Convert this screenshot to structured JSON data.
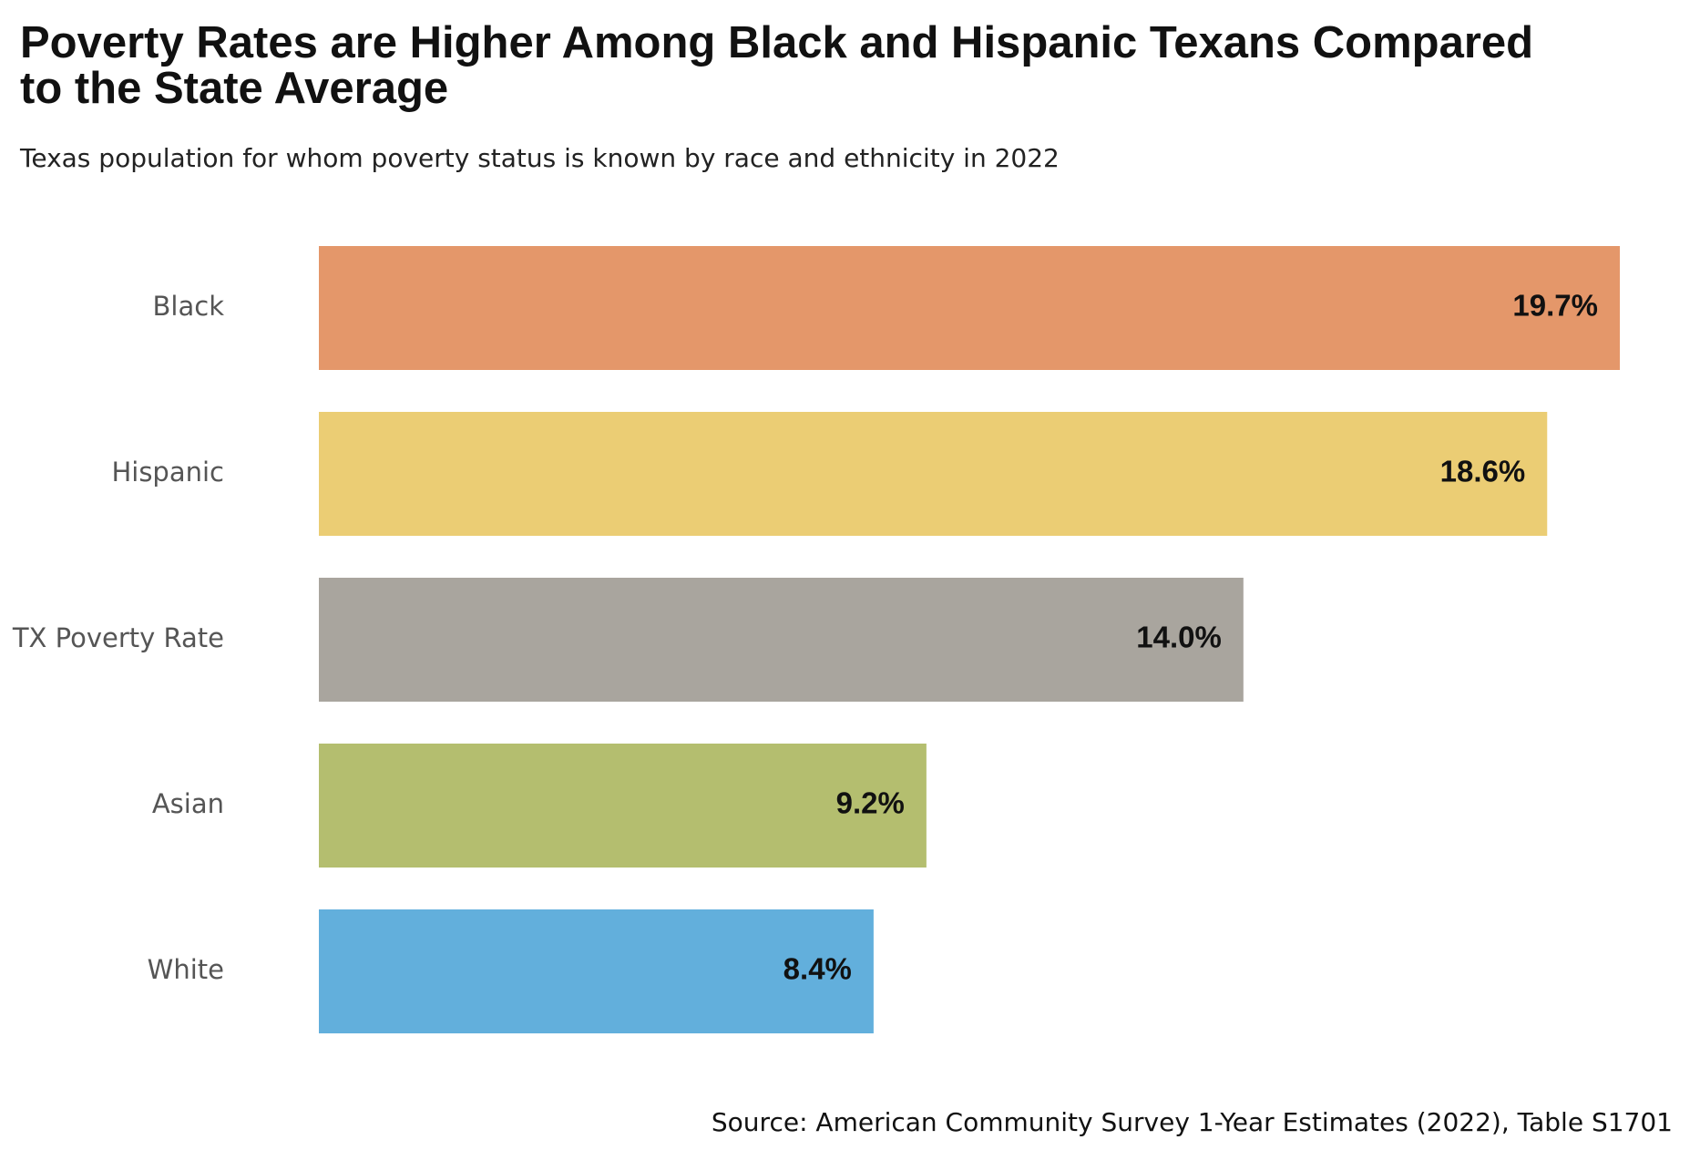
{
  "title": "Poverty Rates are Higher Among Black and Hispanic Texans Compared to the State Average",
  "subtitle": "Texas population for whom poverty status is known by race and ethnicity in 2022",
  "source": "Source: American Community Survey 1-Year Estimates (2022), Table S1701",
  "chart_data": {
    "type": "bar",
    "orientation": "horizontal",
    "categories": [
      "Black",
      "Hispanic",
      "TX Poverty Rate",
      "Asian",
      "White"
    ],
    "values": [
      19.7,
      18.6,
      14.0,
      9.2,
      8.4
    ],
    "value_labels": [
      "19.7%",
      "18.6%",
      "14.0%",
      "9.2%",
      "8.4%"
    ],
    "colors": [
      "#E4976A",
      "#EBCD74",
      "#A9A59E",
      "#B4BE6F",
      "#62AFDC"
    ],
    "title": "Poverty Rates are Higher Among Black and Hispanic Texans Compared to the State Average",
    "subtitle": "Texas population for whom poverty status is known by race and ethnicity in 2022",
    "xlabel": "",
    "ylabel": "",
    "xlim": [
      0,
      19.7
    ],
    "grid": false,
    "legend": "none"
  }
}
